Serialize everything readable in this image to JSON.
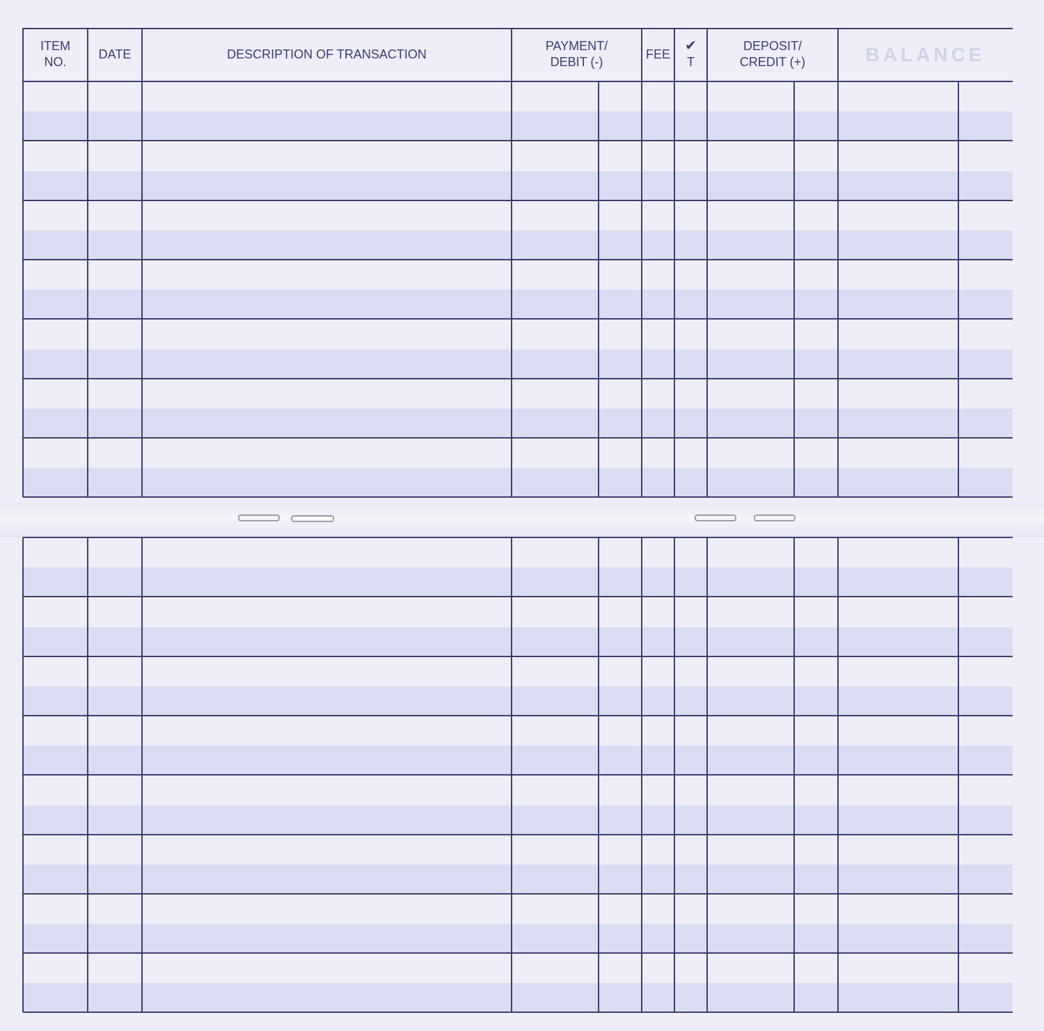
{
  "register": {
    "headers": {
      "item_no": "ITEM NO.",
      "date": "DATE",
      "description": "DESCRIPTION OF TRANSACTION",
      "payment_debit": "PAYMENT/ DEBIT (-)",
      "fee": "FEE",
      "check_mark": "✔",
      "check_t": "T",
      "deposit_credit": "DEPOSIT/ CREDIT (+)",
      "balance": "BALANCE"
    },
    "upper_rows": 7,
    "lower_rows": 8,
    "colors": {
      "line": "#3d3d6e",
      "paper": "#eeeef9",
      "band": "#dadcf1"
    }
  }
}
